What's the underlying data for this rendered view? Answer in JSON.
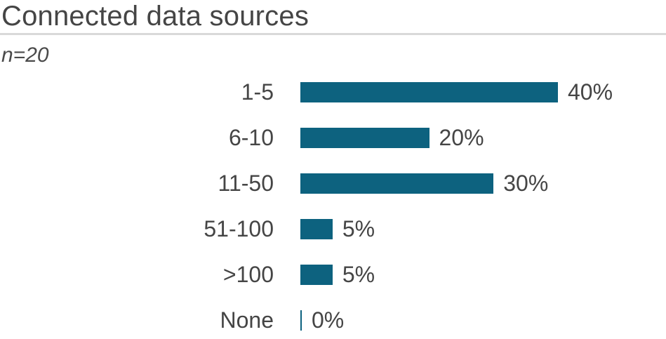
{
  "title": "Connected data sources",
  "sample_label": "n=20",
  "chart_data": {
    "type": "bar",
    "orientation": "horizontal",
    "title": "Connected data sources",
    "subtitle": "n=20",
    "categories": [
      "1-5",
      "6-10",
      "11-50",
      "51-100",
      ">100",
      "None"
    ],
    "values": [
      40,
      20,
      30,
      5,
      5,
      0
    ],
    "value_labels": [
      "40%",
      "20%",
      "30%",
      "5%",
      "5%",
      "0%"
    ],
    "xlabel": "",
    "ylabel": "",
    "xlim": [
      0,
      40
    ],
    "grid": false,
    "legend": false,
    "bar_color": "#0d627f",
    "text_color": "#454545",
    "divider_color": "#d9d9d9"
  }
}
